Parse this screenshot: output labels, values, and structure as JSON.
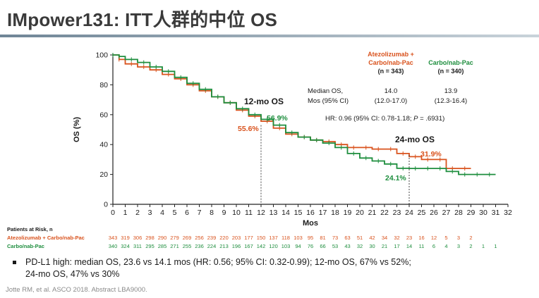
{
  "slide": {
    "title": "IMpower131: ITT人群的中位 OS"
  },
  "colors": {
    "atezo": "#d9531e",
    "carbo": "#1e8e3e",
    "axis": "#222222",
    "text": "#1a1a1a"
  },
  "chart_data": {
    "type": "line",
    "subtype": "kaplan-meier",
    "xlabel": "Mos",
    "ylabel": "OS (%)",
    "xlim": [
      0,
      32
    ],
    "ylim": [
      0,
      100
    ],
    "xticks": [
      0,
      1,
      2,
      3,
      4,
      5,
      6,
      7,
      8,
      9,
      10,
      11,
      12,
      13,
      14,
      15,
      16,
      17,
      18,
      19,
      20,
      21,
      22,
      23,
      24,
      25,
      26,
      27,
      28,
      29,
      30,
      31,
      32
    ],
    "yticks": [
      0,
      20,
      40,
      60,
      80,
      100
    ],
    "grid": false,
    "series": [
      {
        "name": "Atezolizumab + Carbo/nab-Pac",
        "header_lines": [
          "Atezolizumab +",
          "Carbo/nab-Pac"
        ],
        "n_label": "(n = 343)",
        "color_key": "atezo",
        "x": [
          0,
          0.5,
          1,
          2,
          3,
          4,
          5,
          6,
          7,
          8,
          9,
          10,
          11,
          12,
          13,
          14,
          15,
          16,
          17,
          18,
          19,
          20,
          21,
          22,
          23,
          24,
          25,
          26,
          27,
          28,
          29
        ],
        "y": [
          100,
          97,
          94,
          92,
          90,
          87,
          84,
          80,
          76,
          72,
          68,
          63,
          59,
          55.6,
          51,
          47,
          45,
          43,
          42,
          40,
          38,
          38,
          37,
          37,
          34,
          31.9,
          30,
          30,
          24,
          24,
          24
        ]
      },
      {
        "name": "Carbo/nab-Pac",
        "header_lines": [
          "Carbo/nab-Pac"
        ],
        "n_label": "(n = 340)",
        "color_key": "carbo",
        "x": [
          0,
          0.5,
          1,
          2,
          3,
          4,
          5,
          6,
          7,
          8,
          9,
          10,
          11,
          12,
          13,
          14,
          15,
          16,
          17,
          18,
          19,
          20,
          21,
          22,
          23,
          24,
          25,
          26,
          27,
          28,
          29,
          30,
          31
        ],
        "y": [
          100,
          99,
          97,
          95,
          92,
          89,
          85,
          81,
          77,
          72,
          68,
          64,
          60,
          56.9,
          53,
          48,
          45,
          43,
          41,
          38,
          34,
          31,
          29,
          27,
          24.1,
          24,
          24,
          24,
          22,
          20,
          20,
          20,
          20
        ]
      }
    ],
    "stats": {
      "median_label_lines": [
        "Median OS,",
        "Mos (95% CI)"
      ],
      "atezo_median": "14.0",
      "atezo_ci": "(12.0-17.0)",
      "carbo_median": "13.9",
      "carbo_ci": "(12.3-16.4)",
      "hr_prefix": "HR: 0.96 (95% CI: 0.78-1.18; ",
      "hr_p_letter": "P",
      "hr_suffix": " = .6931)"
    },
    "annotations": {
      "mo12_label": "12-mo OS",
      "mo12_atezo": "55.6%",
      "mo12_carbo": "56.9%",
      "mo24_label": "24-mo OS",
      "mo24_atezo": "31.9%",
      "mo24_carbo": "24.1%"
    },
    "risk_table": {
      "header": "Patients at Risk, n",
      "atezo_label": "Atezolizumab + Carbo/nab-Pac",
      "carbo_label": "Carbo/nab-Pac",
      "atezo": [
        "343",
        "319",
        "306",
        "298",
        "290",
        "279",
        "269",
        "256",
        "239",
        "220",
        "203",
        "177",
        "150",
        "137",
        "118",
        "103",
        "95",
        "81",
        "73",
        "63",
        "51",
        "42",
        "34",
        "32",
        "23",
        "16",
        "12",
        "5",
        "3",
        "2"
      ],
      "carbo": [
        "340",
        "324",
        "311",
        "295",
        "285",
        "271",
        "255",
        "236",
        "224",
        "213",
        "196",
        "167",
        "142",
        "120",
        "103",
        "94",
        "76",
        "66",
        "53",
        "43",
        "32",
        "30",
        "21",
        "17",
        "14",
        "11",
        "6",
        "4",
        "3",
        "2",
        "1",
        "1"
      ]
    }
  },
  "bullet": {
    "line1": "PD-L1 high: median OS, 23.6 vs 14.1 mos (HR: 0.56; 95% CI: 0.32-0.99); 12-mo OS, 67% vs 52%;",
    "line2": "24-mo OS, 47% vs 30%"
  },
  "citation": "Jotte RM, et al. ASCO 2018. Abstract LBA9000."
}
